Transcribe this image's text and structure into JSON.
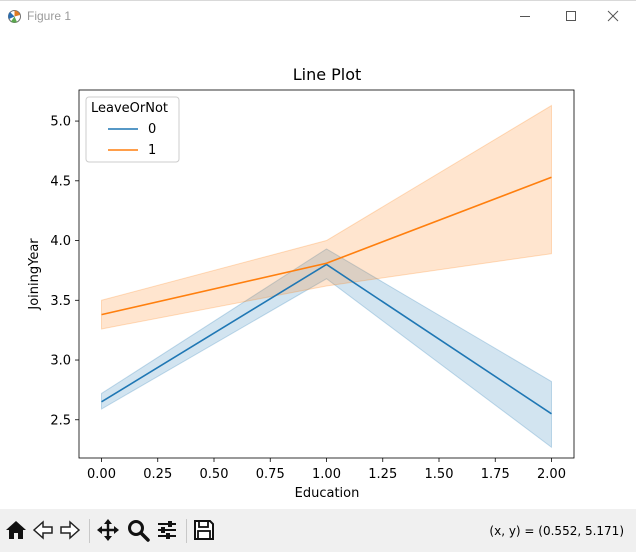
{
  "window": {
    "title": "Figure 1",
    "icon": "matplotlib-figure-icon",
    "controls": [
      "minimize-icon",
      "maximize-icon",
      "close-icon"
    ]
  },
  "toolbar": {
    "buttons": [
      "home-icon",
      "back-arrow-icon",
      "forward-arrow-icon",
      "pan-move-icon",
      "zoom-magnifier-icon",
      "configure-subplots-icon",
      "save-floppy-icon"
    ],
    "coordinates": "(x, y) = (0.552, 5.171)"
  },
  "chart_data": {
    "type": "line",
    "title": "Line Plot",
    "xlabel": "Education",
    "ylabel": "JoiningYear",
    "xlim": [
      -0.1,
      2.1
    ],
    "ylim": [
      2.18,
      5.26
    ],
    "xticks": [
      "0.00",
      "0.25",
      "0.50",
      "0.75",
      "1.00",
      "1.25",
      "1.50",
      "1.75",
      "2.00"
    ],
    "xtick_values": [
      0,
      0.25,
      0.5,
      0.75,
      1.0,
      1.25,
      1.5,
      1.75,
      2.0
    ],
    "yticks": [
      "2.5",
      "3.0",
      "3.5",
      "4.0",
      "4.5",
      "5.0"
    ],
    "ytick_values": [
      2.5,
      3.0,
      3.5,
      4.0,
      4.5,
      5.0
    ],
    "grid": false,
    "legend": {
      "title": "LeaveOrNot",
      "placement": "upper-left"
    },
    "x": [
      0,
      1,
      2
    ],
    "series": [
      {
        "name": "0",
        "color": "#1f77b4",
        "values": [
          2.65,
          3.8,
          2.55
        ],
        "ci_lower": [
          2.59,
          3.68,
          2.27
        ],
        "ci_upper": [
          2.72,
          3.93,
          2.82
        ]
      },
      {
        "name": "1",
        "color": "#ff7f0e",
        "values": [
          3.38,
          3.81,
          4.53
        ],
        "ci_lower": [
          3.26,
          3.62,
          3.89
        ],
        "ci_upper": [
          3.5,
          4.0,
          5.13
        ]
      }
    ]
  }
}
